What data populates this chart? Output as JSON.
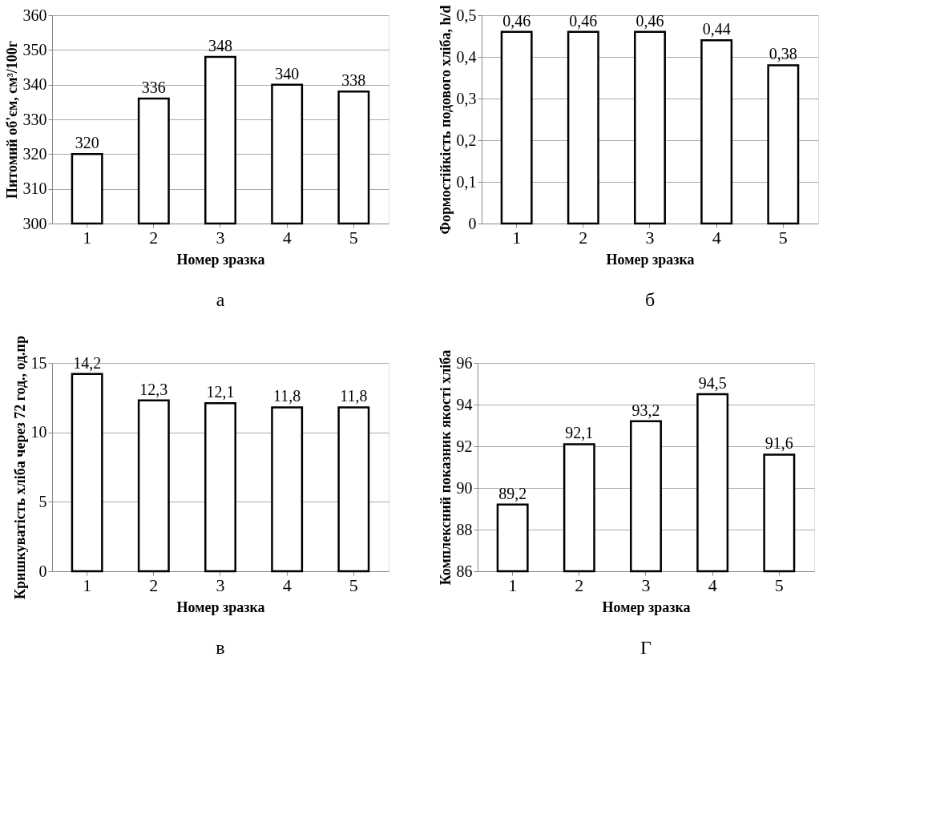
{
  "chart_data": [
    {
      "type": "bar",
      "categories": [
        "1",
        "2",
        "3",
        "4",
        "5"
      ],
      "values": [
        320,
        336,
        348,
        340,
        338
      ],
      "value_labels": [
        "320",
        "336",
        "348",
        "340",
        "338"
      ],
      "color": "#ffffff",
      "ylabel": "Питомий об'єм, см³/100г",
      "xlabel": "Номер зразка",
      "ylim": [
        300,
        360
      ],
      "yticks": [
        300,
        310,
        320,
        330,
        340,
        350,
        360
      ],
      "grid": "y",
      "annotations": [
        "а"
      ]
    },
    {
      "type": "bar",
      "categories": [
        "1",
        "2",
        "3",
        "4",
        "5"
      ],
      "values": [
        0.46,
        0.46,
        0.46,
        0.44,
        0.38
      ],
      "value_labels": [
        "0,46",
        "0,46",
        "0,46",
        "0,44",
        "0,38"
      ],
      "color": "#ffffff",
      "ylabel": "Формостійкість подового хліба, h/d",
      "xlabel": "Номер зразка",
      "ylim": [
        0,
        0.5
      ],
      "yticks": [
        0,
        {
          "value": 0.1,
          "label": "0,1"
        },
        {
          "value": 0.2,
          "label": "0,2"
        },
        {
          "value": 0.3,
          "label": "0,3"
        },
        {
          "value": 0.4,
          "label": "0,4"
        },
        {
          "value": 0.5,
          "label": "0,5"
        }
      ],
      "grid": "y",
      "annotations": [
        "б"
      ]
    },
    {
      "type": "bar",
      "categories": [
        "1",
        "2",
        "3",
        "4",
        "5"
      ],
      "values": [
        14.2,
        12.3,
        12.1,
        11.8,
        11.8
      ],
      "value_labels": [
        "14,2",
        "12,3",
        "12,1",
        "11,8",
        "11,8"
      ],
      "color": "#ffffff",
      "ylabel": "Кришкуватість хліба через 72 год., од.пр",
      "xlabel": "Номер зразка",
      "ylim": [
        0,
        15
      ],
      "yticks": [
        0,
        5,
        10,
        15
      ],
      "grid": "y",
      "annotations": [
        "в"
      ]
    },
    {
      "type": "bar",
      "categories": [
        "1",
        "2",
        "3",
        "4",
        "5"
      ],
      "values": [
        89.2,
        92.1,
        93.2,
        94.5,
        91.6
      ],
      "value_labels": [
        "89,2",
        "92,1",
        "93,2",
        "94,5",
        "91,6"
      ],
      "color": "#ffffff",
      "ylabel": "Комплексний показник якості хліба",
      "xlabel": "Номер зразка",
      "ylim": [
        86,
        96
      ],
      "yticks": [
        86,
        88,
        90,
        92,
        94,
        96
      ],
      "grid": "y",
      "annotations": [
        "Г"
      ]
    }
  ]
}
